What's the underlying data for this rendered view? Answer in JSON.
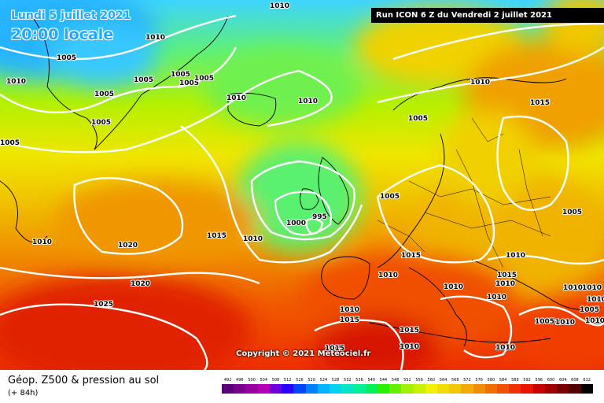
{
  "header": {
    "date": "Lundi 5 juillet 2021",
    "local_time": "20:00 locale",
    "run": "Run ICON 6 Z du Vendredi 2 juillet 2021"
  },
  "copyright": "Copyright © 2021 Meteociel.fr",
  "legend": {
    "title": "Géop. Z500 & pression au sol",
    "subtitle": "(+ 84h)",
    "scale_values": [
      "492",
      "496",
      "500",
      "504",
      "508",
      "512",
      "516",
      "520",
      "524",
      "528",
      "532",
      "536",
      "540",
      "544",
      "548",
      "552",
      "556",
      "560",
      "564",
      "568",
      "572",
      "576",
      "580",
      "584",
      "588",
      "592",
      "596",
      "600",
      "604",
      "608",
      "612"
    ],
    "scale_colors": [
      "#5a0078",
      "#78008c",
      "#9600a0",
      "#b400b4",
      "#6e00dc",
      "#2800ff",
      "#0046ff",
      "#0082ff",
      "#00b4ff",
      "#00d2f0",
      "#00e6c8",
      "#00f096",
      "#00f05a",
      "#28f000",
      "#64f000",
      "#a0f000",
      "#c8f000",
      "#f0f000",
      "#f0dc00",
      "#f0c800",
      "#f0aa00",
      "#f08c00",
      "#f06e00",
      "#f05000",
      "#f03200",
      "#e61400",
      "#c80000",
      "#a00000",
      "#780000",
      "#500000",
      "#000000"
    ]
  },
  "pressure_labels": [
    "1010",
    "1005",
    "1010",
    "1005",
    "1005",
    "1005",
    "1005",
    "1010",
    "1005",
    "1005",
    "1010",
    "1010",
    "1010",
    "1005",
    "1010",
    "1015",
    "1005",
    "1005",
    "1000",
    "995",
    "1015",
    "1010",
    "1020",
    "1010",
    "1020",
    "1025",
    "1015",
    "1010",
    "1010",
    "1015",
    "1010",
    "1010",
    "1010",
    "1005",
    "1010",
    "1010",
    "1005",
    "1005",
    "1010",
    "1010",
    "1015",
    "1015",
    "1015",
    "1010",
    "1010",
    "1010"
  ]
}
